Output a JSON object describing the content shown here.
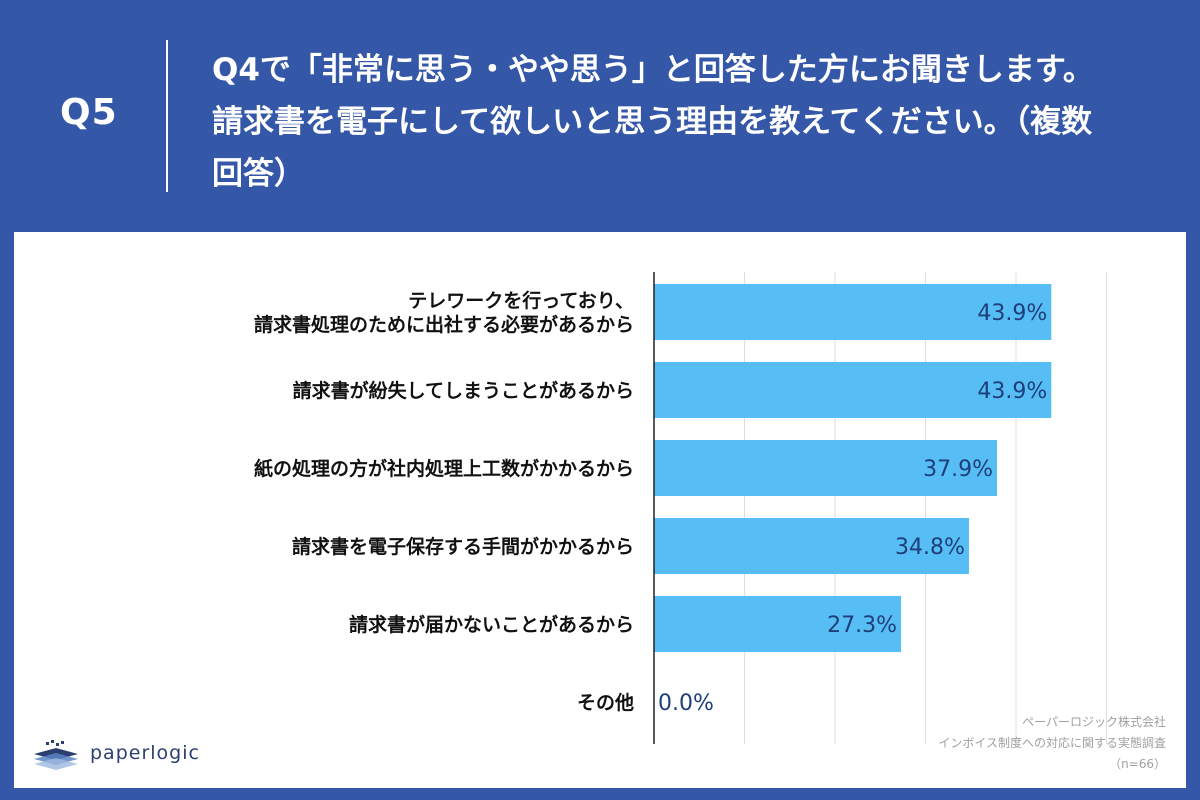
{
  "header": {
    "q_label": "Q5",
    "question": "Q4で「非常に思う・やや思う」と回答した方にお聞きします。請求書を電子にして欲しいと思う理由を教えてください。（複数回答）"
  },
  "colors": {
    "background": "#3457a8",
    "bar": "#56bdf5",
    "value_label": "#1f3f7a",
    "category_label": "#111111",
    "grid": "#dddddd"
  },
  "chart_data": {
    "type": "bar",
    "orientation": "horizontal",
    "categories": [
      [
        "テレワークを行っており、",
        "請求書処理のために出社する必要があるから"
      ],
      [
        "請求書が紛失してしまうことがあるから"
      ],
      [
        "紙の処理の方が社内処理上工数がかかるから"
      ],
      [
        "請求書を電子保存する手間がかかるから"
      ],
      [
        "請求書が届かないことがあるから"
      ],
      [
        "その他"
      ]
    ],
    "values": [
      43.9,
      43.9,
      37.9,
      34.8,
      27.3,
      0.0
    ],
    "value_labels": [
      "43.9%",
      "43.9%",
      "37.9%",
      "34.8%",
      "27.3%",
      "0.0%"
    ],
    "xlim": [
      0,
      50
    ],
    "grid": true
  },
  "footer": {
    "logo_text": "paperlogic",
    "source_lines": [
      "ペーパーロジック株式会社",
      "インボイス制度への対応に関する実態調査",
      "（n=66）"
    ]
  }
}
